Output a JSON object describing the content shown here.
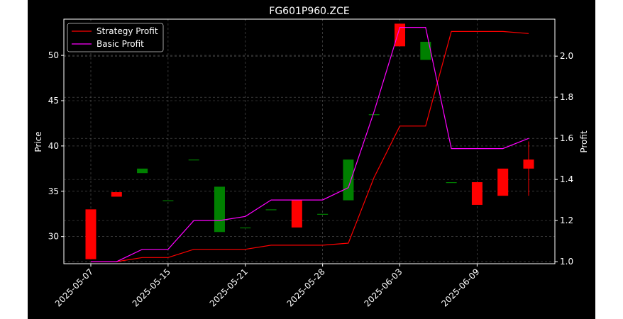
{
  "chart_data": {
    "type": "candlestick",
    "title": "FG601P960.ZCE",
    "ylabel": "Price",
    "y2label": "Profit",
    "grid": true,
    "legend_position": "top-left",
    "ylim": [
      27.0,
      54.0
    ],
    "y2lim": [
      0.99,
      2.18
    ],
    "yticks": [
      30,
      35,
      40,
      45,
      50
    ],
    "y2ticks": [
      1.0,
      1.2,
      1.4,
      1.6,
      1.8,
      2.0
    ],
    "y2tick_labels": [
      "1.0",
      "1.2",
      "1.4",
      "1.6",
      "1.8",
      "2.0"
    ],
    "xtick_labels": [
      "2025-05-07",
      "2025-05-15",
      "2025-05-21",
      "2025-05-28",
      "2025-06-03",
      "2025-06-09"
    ],
    "xtick_index": [
      0,
      3,
      6,
      9,
      12,
      15
    ],
    "colors": {
      "background": "#000000",
      "up": "#008000",
      "down": "#ff0000",
      "strategy": "#ff0000",
      "basic": "#ff00ff",
      "grid": "#808080"
    },
    "candles": [
      {
        "open": 33.0,
        "high": 33.0,
        "low": 27.5,
        "close": 27.5
      },
      {
        "open": 34.9,
        "high": 34.9,
        "low": 34.4,
        "close": 34.4
      },
      {
        "open": 37.0,
        "high": 37.5,
        "low": 37.0,
        "close": 37.5
      },
      {
        "open": 34.0,
        "high": 34.0,
        "low": 34.0,
        "close": 34.0
      },
      {
        "open": 38.5,
        "high": 38.5,
        "low": 38.5,
        "close": 38.5
      },
      {
        "open": 30.5,
        "high": 35.5,
        "low": 30.5,
        "close": 35.5
      },
      {
        "open": 31.0,
        "high": 31.0,
        "low": 31.0,
        "close": 31.0
      },
      {
        "open": 33.0,
        "high": 33.0,
        "low": 33.0,
        "close": 33.0
      },
      {
        "open": 34.0,
        "high": 34.0,
        "low": 31.0,
        "close": 31.0
      },
      {
        "open": 32.5,
        "high": 32.5,
        "low": 32.5,
        "close": 32.5
      },
      {
        "open": 34.0,
        "high": 38.5,
        "low": 34.0,
        "close": 38.5
      },
      {
        "open": 43.5,
        "high": 43.5,
        "low": 43.5,
        "close": 43.5
      },
      {
        "open": 53.5,
        "high": 53.5,
        "low": 51.0,
        "close": 51.0
      },
      {
        "open": 49.5,
        "high": 51.5,
        "low": 49.5,
        "close": 51.5
      },
      {
        "open": 36.0,
        "high": 36.0,
        "low": 36.0,
        "close": 36.0
      },
      {
        "open": 36.0,
        "high": 36.0,
        "low": 33.5,
        "close": 33.5
      },
      {
        "open": 37.5,
        "high": 37.5,
        "low": 34.5,
        "close": 34.5
      },
      {
        "open": 38.5,
        "high": 40.5,
        "low": 34.5,
        "close": 37.5
      }
    ],
    "series": [
      {
        "name": "Strategy Profit",
        "axis": "right",
        "values": [
          1.0,
          1.0,
          1.02,
          1.02,
          1.06,
          1.06,
          1.06,
          1.08,
          1.08,
          1.08,
          1.09,
          1.41,
          1.66,
          1.66,
          2.12,
          2.12,
          2.12,
          2.11
        ]
      },
      {
        "name": "Basic Profit",
        "axis": "right",
        "values": [
          1.0,
          1.0,
          1.06,
          1.06,
          1.2,
          1.2,
          1.22,
          1.3,
          1.3,
          1.3,
          1.36,
          1.73,
          2.14,
          2.14,
          1.55,
          1.55,
          1.55,
          1.6
        ]
      }
    ]
  }
}
